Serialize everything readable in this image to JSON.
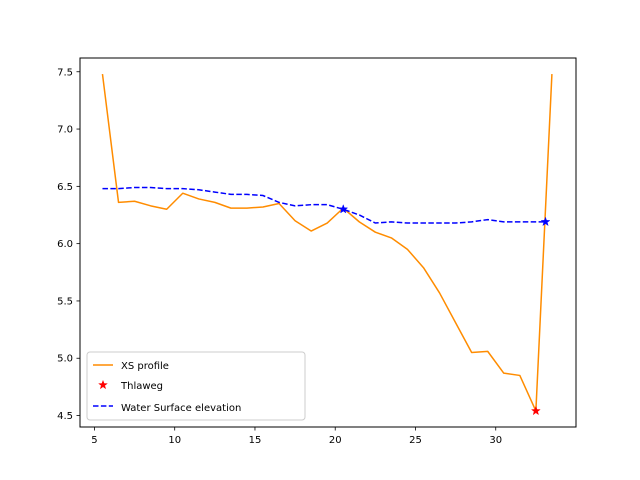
{
  "chart_data": {
    "type": "line",
    "title": "",
    "xlabel": "",
    "ylabel": "",
    "xlim": [
      4.1,
      35.0
    ],
    "ylim": [
      4.4,
      7.62
    ],
    "xticks": [
      5,
      10,
      15,
      20,
      25,
      30
    ],
    "yticks": [
      4.5,
      5.0,
      5.5,
      6.0,
      6.5,
      7.0,
      7.5
    ],
    "grid": false,
    "legend_position": "lower-left",
    "series": [
      {
        "name": "XS profile",
        "style": "solid",
        "color": "#ff8c00",
        "x": [
          5.5,
          6.5,
          7.5,
          8.5,
          9.5,
          10.5,
          11.5,
          12.5,
          13.5,
          14.5,
          15.5,
          16.5,
          17.5,
          18.5,
          19.5,
          20.5,
          21.5,
          22.5,
          23.5,
          24.5,
          25.5,
          26.5,
          27.5,
          28.5,
          29.5,
          30.5,
          31.5,
          32.5,
          33.5
        ],
        "y": [
          7.48,
          6.36,
          6.37,
          6.33,
          6.3,
          6.44,
          6.39,
          6.36,
          6.31,
          6.31,
          6.32,
          6.35,
          6.2,
          6.11,
          6.18,
          6.31,
          6.19,
          6.1,
          6.05,
          5.95,
          5.79,
          5.57,
          5.31,
          5.05,
          5.06,
          4.87,
          4.85,
          4.54,
          7.48
        ]
      },
      {
        "name": "Thlaweg",
        "style": "markers",
        "marker": "star",
        "color": "#ff0000",
        "x": [
          32.5
        ],
        "y": [
          4.54
        ]
      },
      {
        "name": "Water Surface elevation",
        "style": "dashed",
        "color": "#0000ff",
        "x": [
          5.5,
          6.5,
          7.5,
          8.5,
          9.5,
          10.5,
          11.5,
          12.5,
          13.5,
          14.5,
          15.5,
          16.5,
          17.5,
          18.5,
          19.5,
          20.5,
          21.5,
          22.5,
          23.5,
          24.5,
          25.5,
          26.5,
          27.5,
          28.5,
          29.5,
          30.5,
          31.5,
          32.5,
          33.1
        ],
        "y": [
          6.48,
          6.48,
          6.49,
          6.49,
          6.48,
          6.48,
          6.47,
          6.45,
          6.43,
          6.43,
          6.42,
          6.36,
          6.33,
          6.34,
          6.34,
          6.3,
          6.25,
          6.18,
          6.19,
          6.18,
          6.18,
          6.18,
          6.18,
          6.19,
          6.21,
          6.19,
          6.19,
          6.19,
          6.19
        ]
      }
    ],
    "annotation_markers": [
      {
        "series": "Water Surface elevation",
        "marker": "star",
        "color": "#0000ff",
        "x": [
          20.5,
          33.1
        ],
        "y": [
          6.3,
          6.19
        ]
      }
    ]
  }
}
